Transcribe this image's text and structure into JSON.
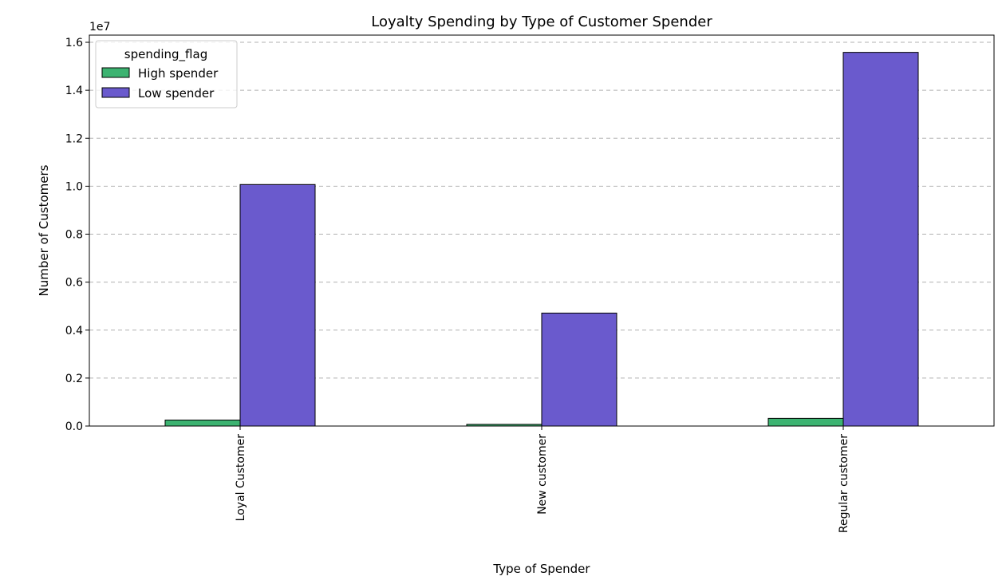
{
  "chart_data": {
    "type": "bar",
    "title": "Loyalty Spending by Type of Customer Spender",
    "xlabel": "Type of Spender",
    "ylabel": "Number of Customers",
    "y_offset_label": "1e7",
    "y_scale": 10000000,
    "ylim": [
      0,
      16300000
    ],
    "yticks": [
      0,
      2000000,
      4000000,
      6000000,
      8000000,
      10000000,
      12000000,
      14000000,
      16000000
    ],
    "ytick_labels": [
      "0.0",
      "0.2",
      "0.4",
      "0.6",
      "0.8",
      "1.0",
      "1.2",
      "1.4",
      "1.6"
    ],
    "grid": "y",
    "categories": [
      "Loyal Customer",
      "New customer",
      "Regular customer"
    ],
    "legend": {
      "title": "spending_flag",
      "placement": "top-left"
    },
    "series": [
      {
        "name": "High spender",
        "color": "#3cb371",
        "values": [
          250000,
          70000,
          320000
        ]
      },
      {
        "name": "Low spender",
        "color": "#6a5acd",
        "values": [
          10070000,
          4710000,
          15580000
        ]
      }
    ]
  }
}
